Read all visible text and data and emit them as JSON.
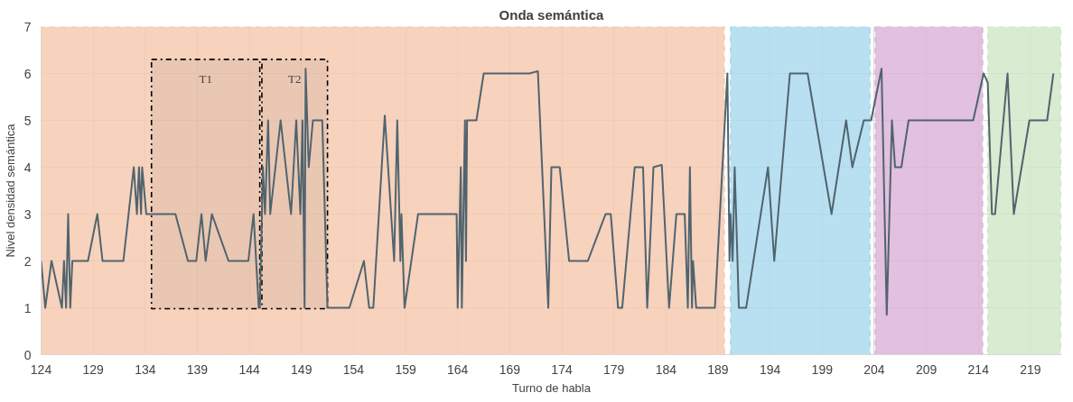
{
  "chart_data": {
    "type": "line",
    "title": "Onda semántica",
    "xlabel": "Turno de habla",
    "ylabel": "Nivel densidad semántica",
    "xlim": [
      124,
      222
    ],
    "xticks": [
      124,
      129,
      134,
      139,
      144,
      149,
      154,
      159,
      164,
      169,
      174,
      179,
      184,
      189,
      194,
      199,
      204,
      209,
      214,
      219
    ],
    "ylim": [
      0,
      7
    ],
    "yticks": [
      0,
      1,
      2,
      3,
      4,
      5,
      6,
      7
    ],
    "grid": true,
    "marker": "none",
    "line_style": "solid",
    "series": [
      {
        "color": "#50646e",
        "x": [
          124,
          124.4,
          125,
          126,
          126.2,
          126.4,
          126.6,
          126.8,
          127,
          128.5,
          129.4,
          129.9,
          131.9,
          132.9,
          133.2,
          133.4,
          133.6,
          133.7,
          134.1,
          136.9,
          138.1,
          138.9,
          139.4,
          139.8,
          140.4,
          142,
          143.9,
          144.4,
          144.9,
          145,
          145.3,
          145.5,
          145.8,
          146,
          147,
          148,
          148.5,
          148.9,
          149.1,
          149.3,
          149.4,
          149.7,
          150.1,
          151,
          151.5,
          153.6,
          155,
          155.5,
          155.9,
          157,
          157.9,
          158.2,
          158.5,
          158.6,
          158.9,
          160.2,
          163.9,
          164,
          164.3,
          164.4,
          164.7,
          164.8,
          164.9,
          165.8,
          166.5,
          170.9,
          171.7,
          172.7,
          173,
          173.8,
          174.7,
          176.5,
          178.2,
          178.7,
          179.4,
          179.8,
          181,
          181.8,
          182.2,
          182.8,
          183.6,
          184.3,
          185,
          185.8,
          186.1,
          186.3,
          186.5,
          186.6,
          186.9,
          188.7,
          189.9,
          190.1,
          190.2,
          190.4,
          190.6,
          191,
          191.7,
          193.8,
          194.4,
          195.9,
          196.9,
          197.6,
          199.9,
          201.3,
          201.9,
          203,
          203.7,
          204.7,
          205.2,
          205.7,
          206,
          206.6,
          207.3,
          213.5,
          214.5,
          214.9,
          215.3,
          215.6,
          216.8,
          217.4,
          218.9,
          220.6,
          221.2
        ],
        "values": [
          2,
          1,
          2,
          1,
          2,
          1,
          3,
          1,
          2,
          2,
          3,
          2,
          2,
          4,
          3,
          4,
          3,
          4,
          3,
          3,
          2,
          2,
          3,
          2,
          3,
          2,
          2,
          3,
          1,
          1,
          4,
          3,
          5,
          3,
          5,
          3,
          5,
          3,
          5,
          1,
          6.1,
          4,
          5,
          5,
          1,
          1,
          2,
          1,
          1,
          5.1,
          2,
          5,
          2,
          3,
          1,
          3,
          3,
          1,
          4,
          1,
          5,
          2,
          5,
          5,
          6,
          6,
          6.05,
          1,
          4,
          4,
          2,
          2,
          3,
          3,
          1,
          1,
          4,
          4,
          1,
          4,
          4.05,
          1,
          3,
          3,
          1,
          4,
          1,
          2,
          1,
          1,
          6,
          2,
          3,
          2,
          4,
          1,
          1,
          4,
          2,
          6,
          6,
          6,
          3,
          5,
          4,
          5,
          5,
          6.1,
          0.85,
          5,
          4,
          4,
          5,
          5,
          6,
          5.8,
          3,
          3,
          6,
          3,
          5,
          5,
          6
        ]
      }
    ],
    "bands": [
      {
        "axis": "x",
        "from": 123.8,
        "to": 189.6,
        "color": "#f5c7ad"
      },
      {
        "axis": "x",
        "from": 190.2,
        "to": 203.6,
        "color": "#a8d8ee"
      },
      {
        "axis": "x",
        "from": 204.1,
        "to": 214.4,
        "color": "#dbb0d8"
      },
      {
        "axis": "x",
        "from": 214.9,
        "to": 221.9,
        "color": "#cfe6c4"
      },
      {
        "axis": "x",
        "from": 134.6,
        "to": 145,
        "label": "T1",
        "color": "#000000"
      },
      {
        "axis": "x",
        "from": 145.2,
        "to": 151.5,
        "label": "T2",
        "color": "#000000"
      }
    ]
  }
}
